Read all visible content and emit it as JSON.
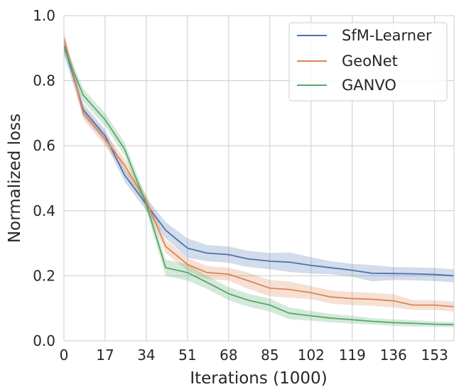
{
  "chart_data": {
    "type": "line",
    "title": "",
    "xlabel": "Iterations (1000)",
    "ylabel": "Normalized loss",
    "xlim": [
      0,
      161
    ],
    "ylim": [
      0.0,
      1.0
    ],
    "xticks": [
      0,
      17,
      34,
      51,
      68,
      85,
      102,
      119,
      136,
      153
    ],
    "yticks": [
      0.0,
      0.2,
      0.4,
      0.6,
      0.8,
      1.0
    ],
    "xtick_labels": [
      "0",
      "17",
      "34",
      "51",
      "68",
      "85",
      "102",
      "119",
      "136",
      "153"
    ],
    "ytick_labels": [
      "0.0",
      "0.2",
      "0.4",
      "0.6",
      "0.8",
      "1.0"
    ],
    "grid": true,
    "legend_position": "top-right",
    "x": [
      0,
      8,
      17,
      25,
      34,
      42,
      51,
      59,
      68,
      76,
      85,
      93,
      102,
      110,
      119,
      127,
      136,
      144,
      153,
      161
    ],
    "series": [
      {
        "name": "SfM-Learner",
        "color": "#4c72b0",
        "values": [
          0.91,
          0.71,
          0.63,
          0.51,
          0.42,
          0.34,
          0.285,
          0.27,
          0.265,
          0.252,
          0.245,
          0.242,
          0.232,
          0.225,
          0.217,
          0.208,
          0.207,
          0.206,
          0.204,
          0.2
        ],
        "band": [
          0.03,
          0.02,
          0.02,
          0.02,
          0.02,
          0.025,
          0.03,
          0.025,
          0.025,
          0.025,
          0.025,
          0.03,
          0.025,
          0.02,
          0.02,
          0.025,
          0.02,
          0.02,
          0.02,
          0.02
        ]
      },
      {
        "name": "GeoNet",
        "color": "#dd8452",
        "values": [
          0.93,
          0.7,
          0.62,
          0.54,
          0.43,
          0.29,
          0.235,
          0.21,
          0.205,
          0.185,
          0.162,
          0.158,
          0.148,
          0.135,
          0.13,
          0.128,
          0.123,
          0.11,
          0.11,
          0.105
        ],
        "band": [
          0.02,
          0.02,
          0.02,
          0.02,
          0.02,
          0.02,
          0.02,
          0.02,
          0.02,
          0.025,
          0.025,
          0.025,
          0.02,
          0.02,
          0.02,
          0.02,
          0.02,
          0.015,
          0.015,
          0.015
        ]
      },
      {
        "name": "GANVO",
        "color": "#55a868",
        "values": [
          0.9,
          0.755,
          0.68,
          0.59,
          0.42,
          0.225,
          0.21,
          0.18,
          0.145,
          0.125,
          0.11,
          0.085,
          0.077,
          0.07,
          0.065,
          0.06,
          0.056,
          0.054,
          0.051,
          0.05
        ],
        "band": [
          0.02,
          0.02,
          0.02,
          0.02,
          0.02,
          0.025,
          0.025,
          0.02,
          0.02,
          0.02,
          0.02,
          0.018,
          0.015,
          0.013,
          0.012,
          0.01,
          0.01,
          0.01,
          0.008,
          0.008
        ]
      }
    ]
  }
}
